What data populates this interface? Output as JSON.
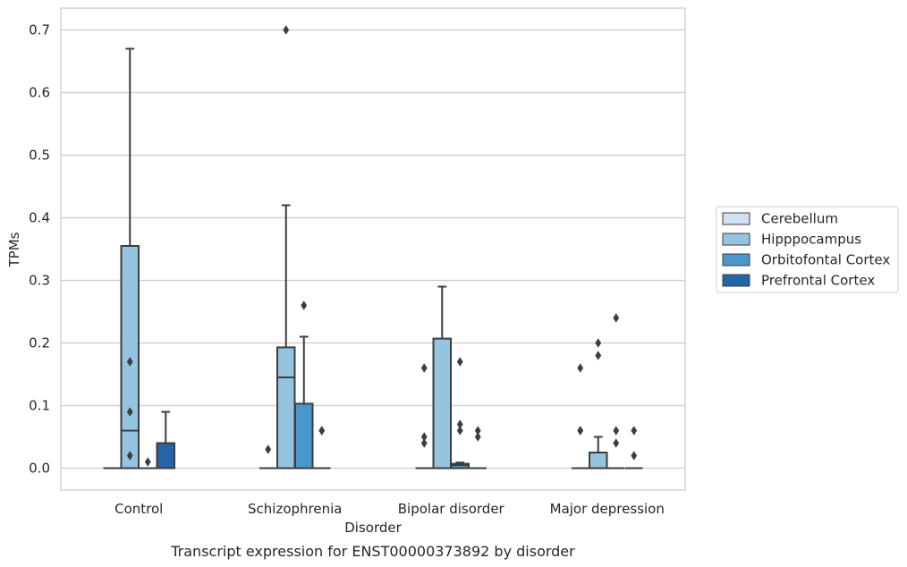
{
  "chart_data": {
    "type": "box",
    "caption": "Transcript expression for ENST00000373892 by disorder",
    "xlabel": "Disorder",
    "ylabel": "TPMs",
    "ylim": [
      -0.035,
      0.735
    ],
    "yticks": [
      "0.0",
      "0.1",
      "0.2",
      "0.3",
      "0.4",
      "0.5",
      "0.6",
      "0.7"
    ],
    "grid": "horizontal",
    "legend_position": "right",
    "categories": [
      "Control",
      "Schizophrenia",
      "Bipolar disorder",
      "Major depression"
    ],
    "series": [
      {
        "name": "Cerebellum",
        "color": "#d0e1f2",
        "boxes": [
          {
            "q1": 0,
            "median": 0,
            "q3": 0,
            "whisker_low": 0,
            "whisker_high": 0,
            "outliers": []
          },
          {
            "q1": 0,
            "median": 0,
            "q3": 0,
            "whisker_low": 0,
            "whisker_high": 0,
            "outliers": [
              0.03
            ]
          },
          {
            "q1": 0,
            "median": 0,
            "q3": 0,
            "whisker_low": 0,
            "whisker_high": 0,
            "outliers": [
              0.04,
              0.05,
              0.16
            ]
          },
          {
            "q1": 0,
            "median": 0,
            "q3": 0,
            "whisker_low": 0,
            "whisker_high": 0,
            "outliers": [
              0.06,
              0.06,
              0.16
            ]
          }
        ]
      },
      {
        "name": "Hipppocampus",
        "color": "#94c4df",
        "boxes": [
          {
            "q1": 0,
            "median": 0.06,
            "q3": 0.355,
            "whisker_low": 0,
            "whisker_high": 0.67,
            "outliers": [
              0.02,
              0.09,
              0.17
            ]
          },
          {
            "q1": 0,
            "median": 0.145,
            "q3": 0.193,
            "whisker_low": 0,
            "whisker_high": 0.42,
            "outliers": [
              0.7
            ]
          },
          {
            "q1": 0,
            "median": 0,
            "q3": 0.207,
            "whisker_low": 0,
            "whisker_high": 0.29,
            "outliers": []
          },
          {
            "q1": 0,
            "median": 0,
            "q3": 0.025,
            "whisker_low": 0,
            "whisker_high": 0.05,
            "outliers": [
              0.18,
              0.2
            ]
          }
        ]
      },
      {
        "name": "Orbitofontal Cortex",
        "color": "#4a98c9",
        "boxes": [
          {
            "q1": 0,
            "median": 0,
            "q3": 0,
            "whisker_low": 0,
            "whisker_high": 0,
            "outliers": [
              0.01
            ]
          },
          {
            "q1": 0,
            "median": 0,
            "q3": 0.103,
            "whisker_low": 0,
            "whisker_high": 0.21,
            "outliers": [
              0.26
            ]
          },
          {
            "q1": 0,
            "median": 0.005,
            "q3": 0.007,
            "whisker_low": 0,
            "whisker_high": 0.009,
            "outliers": [
              0.06,
              0.07,
              0.17
            ]
          },
          {
            "q1": 0,
            "median": 0,
            "q3": 0,
            "whisker_low": 0,
            "whisker_high": 0,
            "outliers": [
              0.04,
              0.06,
              0.24
            ]
          }
        ]
      },
      {
        "name": "Prefrontal Cortex",
        "color": "#2465a7",
        "boxes": [
          {
            "q1": 0,
            "median": 0,
            "q3": 0.04,
            "whisker_low": 0,
            "whisker_high": 0.09,
            "outliers": []
          },
          {
            "q1": 0,
            "median": 0,
            "q3": 0,
            "whisker_low": 0,
            "whisker_high": 0,
            "outliers": [
              0.06,
              0.06
            ]
          },
          {
            "q1": 0,
            "median": 0,
            "q3": 0,
            "whisker_low": 0,
            "whisker_high": 0,
            "outliers": [
              0.05,
              0.06
            ]
          },
          {
            "q1": 0,
            "median": 0,
            "q3": 0,
            "whisker_low": 0,
            "whisker_high": 0,
            "outliers": [
              0.02,
              0.06
            ]
          }
        ]
      }
    ]
  }
}
